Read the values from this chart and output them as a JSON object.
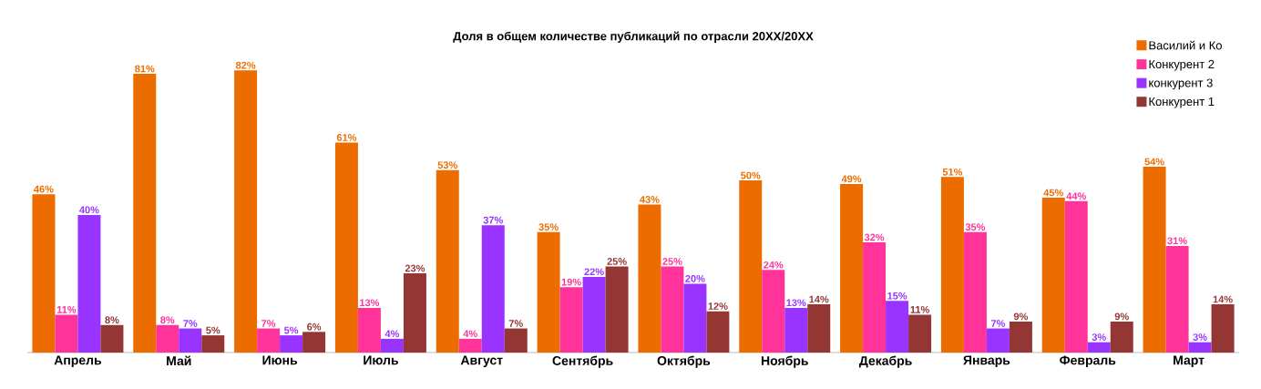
{
  "chart_data": {
    "type": "bar",
    "title": "Доля в общем количестве публикаций по отрасли 20XX/20XX",
    "categories": [
      "Апрель",
      "Май",
      "Июнь",
      "Июль",
      "Август",
      "Сентябрь",
      "Октябрь",
      "Ноябрь",
      "Декабрь",
      "Январь",
      "Февраль",
      "Март"
    ],
    "series": [
      {
        "name": "Василий и Ко",
        "color": "#ed6c00",
        "values": [
          46,
          81,
          82,
          61,
          53,
          35,
          43,
          50,
          49,
          51,
          45,
          54
        ],
        "value_labels": [
          "46%",
          "81%",
          "82%",
          "61%",
          "53%",
          "35%",
          "43%",
          "50%",
          "49%",
          "51%",
          "45%",
          "54%"
        ]
      },
      {
        "name": "Конкурент 2",
        "color": "#ff3399",
        "values": [
          11,
          8,
          7,
          13,
          4,
          19,
          25,
          24,
          32,
          35,
          44,
          31
        ],
        "value_labels": [
          "11%",
          "8%",
          "7%",
          "13%",
          "4%",
          "19%",
          "25%",
          "24%",
          "32%",
          "35%",
          "44%",
          "31%"
        ]
      },
      {
        "name": "конкурент 3",
        "color": "#9933ff",
        "values": [
          40,
          7,
          5,
          4,
          37,
          22,
          20,
          13,
          15,
          7,
          3,
          3
        ],
        "value_labels": [
          "40%",
          "7%",
          "5%",
          "4%",
          "37%",
          "22%",
          "20%",
          "13%",
          "15%",
          "7%",
          "3%",
          "3%"
        ]
      },
      {
        "name": "Конкурент 1",
        "color": "#943634",
        "values": [
          8,
          5,
          6,
          23,
          7,
          25,
          12,
          14,
          11,
          9,
          9,
          14
        ],
        "value_labels": [
          "8%",
          "5%",
          "6%",
          "23%",
          "7%",
          "25%",
          "12%",
          "14%",
          "11%",
          "9%",
          "9%",
          "14%"
        ]
      }
    ],
    "legend": "top right"
  }
}
